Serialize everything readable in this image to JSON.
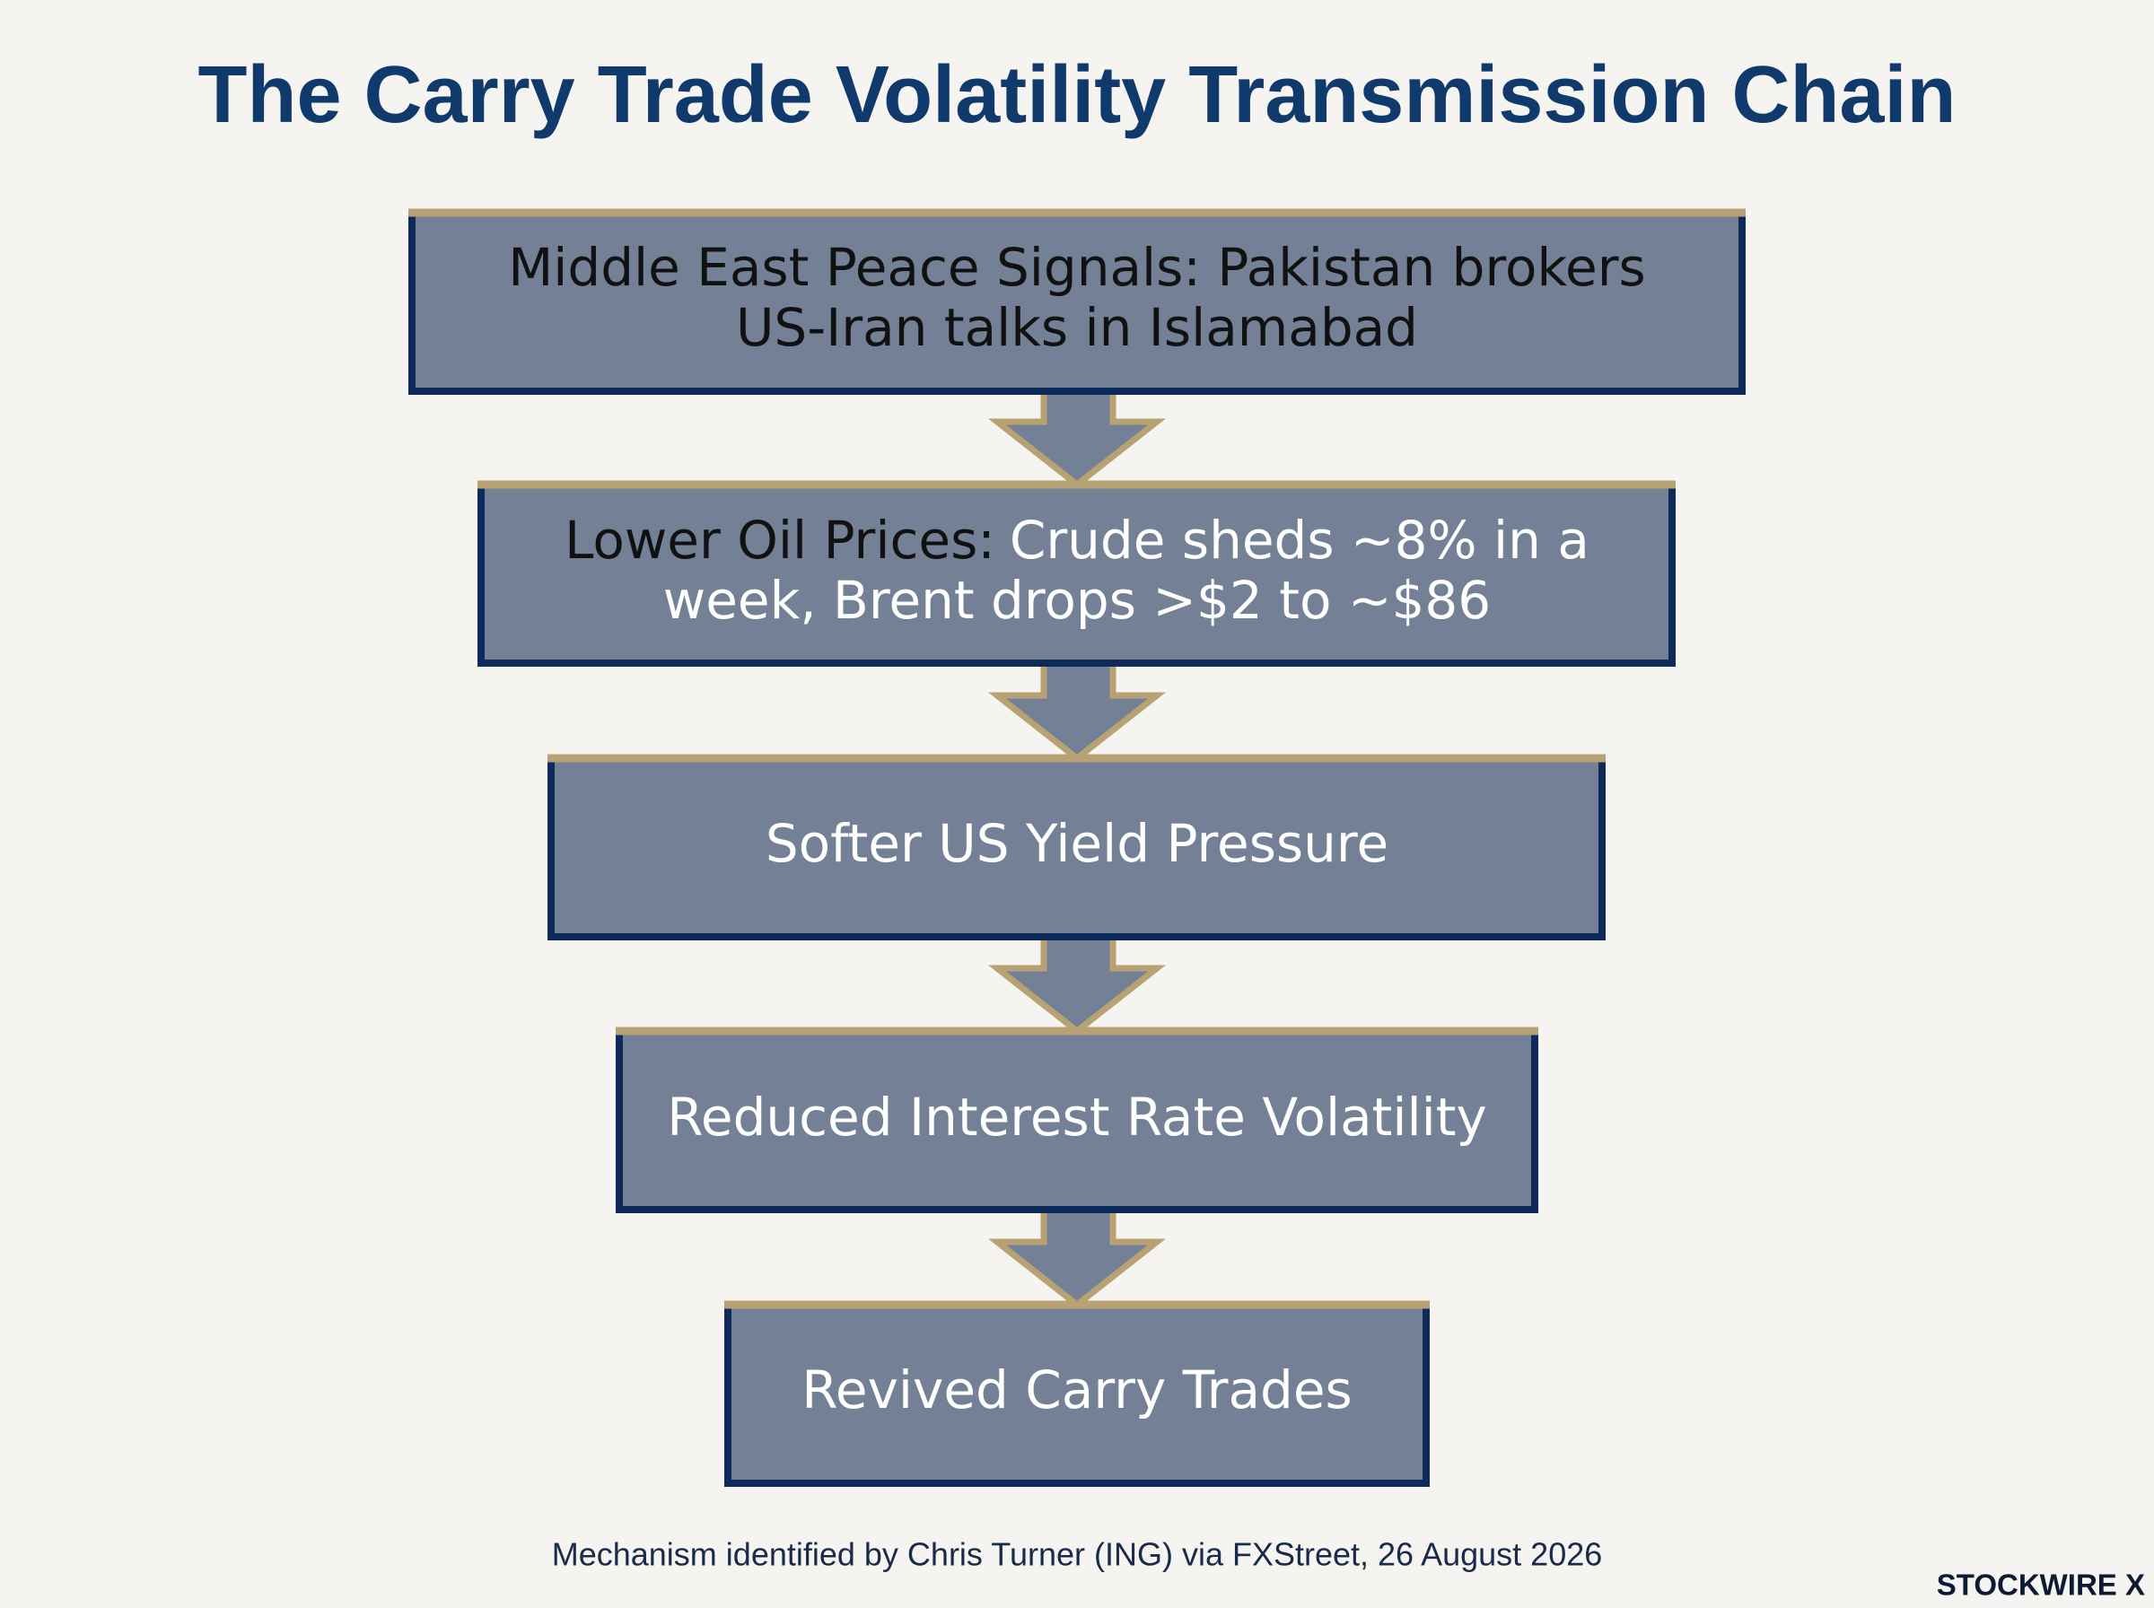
{
  "title": "The Carry Trade Volatility Transmission Chain",
  "steps": [
    {
      "lines": [
        "Middle East Peace Signals: Pakistan brokers",
        "US-Iran talks in Islamabad"
      ]
    },
    {
      "heading": "Lower Oil Prices:",
      "lines": [
        "Crude sheds ~8% in a",
        "week, Brent drops >$2 to ~$86"
      ]
    },
    {
      "lines": [
        "Softer US Yield Pressure"
      ]
    },
    {
      "lines": [
        "Reduced Interest Rate Volatility"
      ]
    },
    {
      "lines": [
        "Revived Carry Trades"
      ]
    }
  ],
  "footer": "Mechanism identified by Chris Turner (ING) via FXStreet, 26 August 2026",
  "brand": "STOCKWIRE X"
}
